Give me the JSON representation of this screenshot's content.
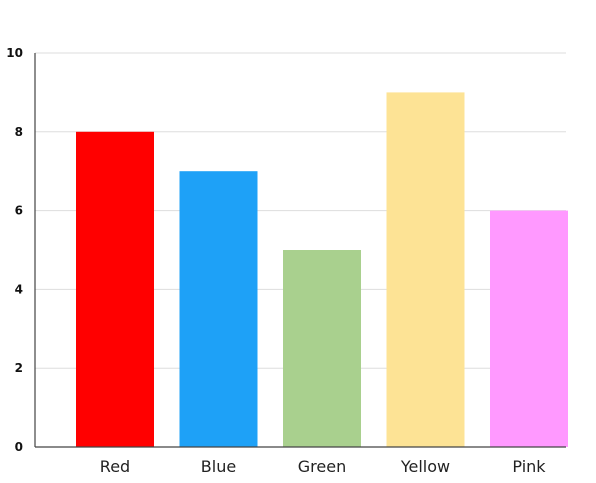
{
  "chart_data": {
    "type": "bar",
    "categories": [
      "Red",
      "Blue",
      "Green",
      "Yellow",
      "Pink"
    ],
    "values": [
      8,
      7,
      5,
      9,
      6
    ],
    "colors": [
      "#ff0000",
      "#1ea1f7",
      "#a9d08e",
      "#fde395",
      "#ff99ff"
    ],
    "yticks": [
      "0",
      "2",
      "4",
      "6",
      "8",
      "10"
    ],
    "ylim": [
      0,
      10
    ],
    "grid": true,
    "axis_color": "#444444",
    "grid_color": "#dddddd",
    "title": "",
    "xlabel": "",
    "ylabel": ""
  }
}
